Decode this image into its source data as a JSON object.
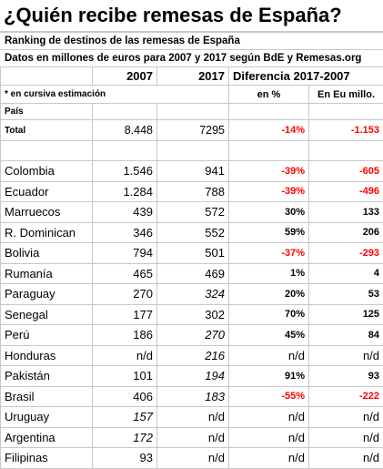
{
  "title": "¿Quién recibe remesas de España?",
  "subtitle1": "Ranking de destinos de las remesas de España",
  "subtitle2": "Datos en millones de euros para 2007 y 2017 según BdE y Remesas.org",
  "headers": {
    "y2007": "2007",
    "y2017": "2017",
    "diff": "Diferencia 2017-2007"
  },
  "note": "* en cursiva estimación",
  "pct_label": "en %",
  "eu_label": "En Eu millo.",
  "pais_label": "País",
  "total": {
    "label": "Total",
    "v2007": "8.448",
    "v2017": "7295",
    "pct": "-14%",
    "diff": "-1.153"
  },
  "rows": [
    {
      "country": "Colombia",
      "v2007": "1.546",
      "v2017": "941",
      "pct": "-39%",
      "diff": "-605"
    },
    {
      "country": "Ecuador",
      "v2007": "1.284",
      "v2017": "788",
      "pct": "-39%",
      "diff": "-496"
    },
    {
      "country": "Marruecos",
      "v2007": "439",
      "v2017": "572",
      "pct": "30%",
      "diff": "133"
    },
    {
      "country": "R. Dominican",
      "v2007": "346",
      "v2017": "552",
      "pct": "59%",
      "diff": "206"
    },
    {
      "country": "Bolivia",
      "v2007": "794",
      "v2017": "501",
      "pct": "-37%",
      "diff": "-293"
    },
    {
      "country": "Rumanía",
      "v2007": "465",
      "v2017": "469",
      "pct": "1%",
      "diff": "4"
    },
    {
      "country": "Paraguay",
      "v2007": "270",
      "v2017": "324",
      "pct": "20%",
      "diff": "53"
    },
    {
      "country": "Senegal",
      "v2007": "177",
      "v2017": "302",
      "pct": "70%",
      "diff": "125"
    },
    {
      "country": "Perú",
      "v2007": "186",
      "v2017": "270",
      "pct": "45%",
      "diff": "84"
    },
    {
      "country": "Honduras",
      "v2007": "n/d",
      "v2017": "216",
      "pct": "n/d",
      "diff": "n/d"
    },
    {
      "country": "Pakistán",
      "v2007": "101",
      "v2017": "194",
      "pct": "91%",
      "diff": "93"
    },
    {
      "country": "Brasil",
      "v2007": "406",
      "v2017": "183",
      "pct": "-55%",
      "diff": "-222"
    },
    {
      "country": "Uruguay",
      "v2007": "157",
      "v2017": "n/d",
      "pct": "n/d",
      "diff": "n/d"
    },
    {
      "country": "Argentina",
      "v2007": "172",
      "v2017": "n/d",
      "pct": "n/d",
      "diff": "n/d"
    },
    {
      "country": "Filipinas",
      "v2007": "93",
      "v2017": "n/d",
      "pct": "n/d",
      "diff": "n/d"
    }
  ]
}
